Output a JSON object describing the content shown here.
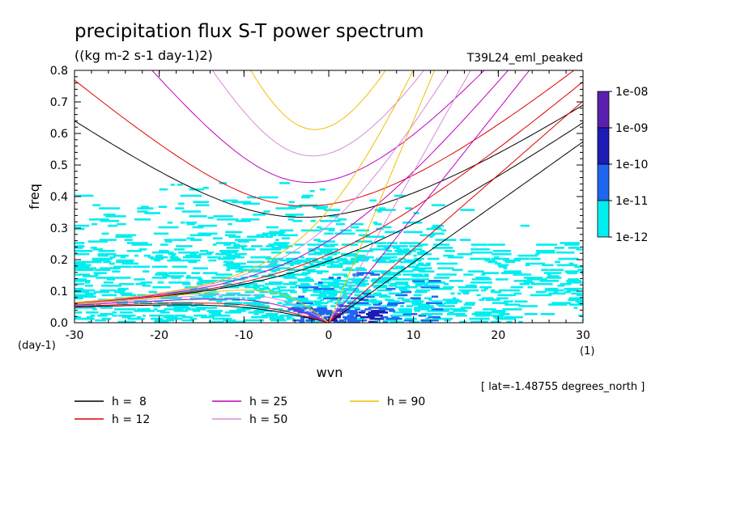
{
  "chart_data": {
    "type": "heatmap",
    "title": "precipitation flux S-T power spectrum",
    "subtitle": "((kg m-2 s-1 day-1)2)",
    "run_label": "T39L24_eml_peaked",
    "xlabel": "wvn",
    "ylabel": "freq",
    "x_unit": "(1)",
    "y_unit": "(day-1)",
    "xlim": [
      -30,
      30
    ],
    "ylim": [
      0,
      0.8
    ],
    "x_ticks": [
      "-30",
      "-20",
      "-10",
      "0",
      "10",
      "20",
      "30"
    ],
    "y_ticks": [
      "0.0",
      "0.1",
      "0.2",
      "0.3",
      "0.4",
      "0.5",
      "0.6",
      "0.7",
      "0.8"
    ],
    "grid": false,
    "colorbar": {
      "labels": [
        "1e-08",
        "1e-09",
        "1e-10",
        "1e-11",
        "1e-12"
      ],
      "colors": [
        "#5b1fb0",
        "#1c1cb4",
        "#1f66f0",
        "#00eef0"
      ]
    },
    "heatmap_regions": [
      {
        "level": "1e-12",
        "color": "#00eef0",
        "description": "broad speckled field, wvn -30..30, freq 0..0.45"
      },
      {
        "level": "1e-11",
        "color": "#1f66f0",
        "description": "low-frequency band near wvn -5..12, freq 0..0.15"
      },
      {
        "level": "1e-10",
        "color": "#1c1cb4",
        "description": "core near wvn 0..6, freq 0..0.05"
      }
    ],
    "dispersion_curves": {
      "equivalent_depths_m": [
        8,
        12,
        25,
        50,
        90
      ],
      "colors": {
        "8": "#000000",
        "12": "#e00000",
        "25": "#c000c0",
        "50": "#d88ad8",
        "90": "#f0c000"
      },
      "families": [
        "kelvin",
        "rossby-gravity",
        "inertia-gravity n=1",
        "rossby n=1"
      ]
    },
    "legend": [
      {
        "label": "h =  8",
        "color": "#000000"
      },
      {
        "label": "h = 12",
        "color": "#e00000"
      },
      {
        "label": "h = 25",
        "color": "#c000c0"
      },
      {
        "label": "h = 50",
        "color": "#d88ad8"
      },
      {
        "label": "h = 90",
        "color": "#f0c000"
      }
    ],
    "legend_placement": "bottom-left",
    "annotation": "[ lat=-1.48755 degrees_north ]"
  }
}
